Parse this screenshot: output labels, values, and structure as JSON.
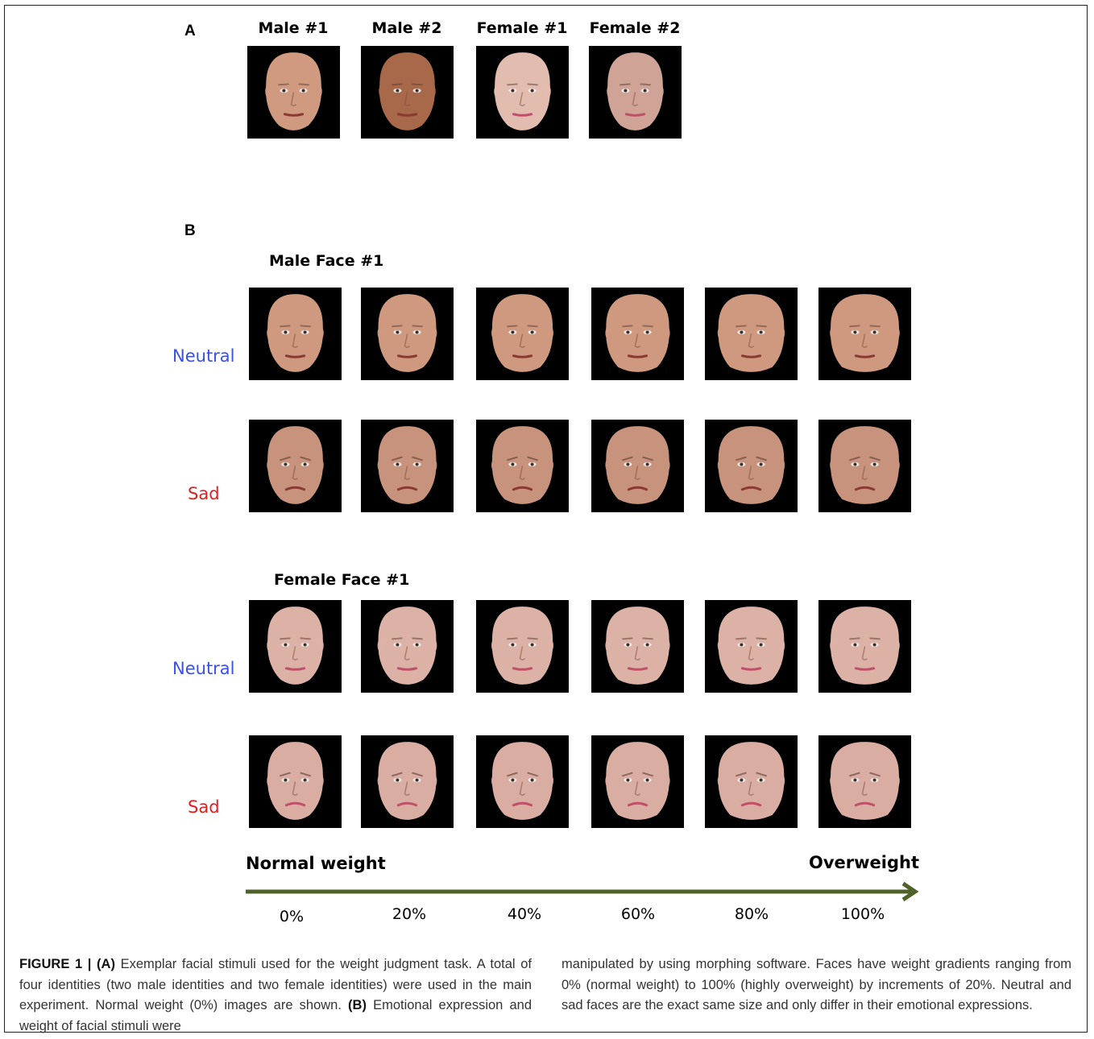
{
  "panel_a": {
    "letter": "A",
    "columns": [
      {
        "label": "Male #1",
        "skin": "#d09a80",
        "shade": "#a06a52",
        "sex": "male"
      },
      {
        "label": "Male #2",
        "skin": "#a8684a",
        "shade": "#6e3a24",
        "sex": "male"
      },
      {
        "label": "Female #1",
        "skin": "#e3bcb0",
        "shade": "#b48c84",
        "sex": "female"
      },
      {
        "label": "Female #2",
        "skin": "#cfa496",
        "shade": "#9c7468",
        "sex": "female"
      }
    ]
  },
  "panel_b": {
    "letter": "B",
    "sections": [
      {
        "title": "Male Face #1",
        "sex": "male",
        "rows": [
          {
            "label": "Neutral",
            "color": "#3a50e6",
            "skin": "#cf9980"
          },
          {
            "label": "Sad",
            "color": "#e02020",
            "skin": "#c8937c"
          }
        ]
      },
      {
        "title": "Female Face #1",
        "sex": "female",
        "rows": [
          {
            "label": "Neutral",
            "color": "#3a50e6",
            "skin": "#dcb2a6"
          },
          {
            "label": "Sad",
            "color": "#e02020",
            "skin": "#d9ada2"
          }
        ]
      }
    ],
    "axis": {
      "start_label": "Normal weight",
      "end_label": "Overweight",
      "arrow_color": "#4f6228",
      "ticks": [
        "0%",
        "20%",
        "40%",
        "60%",
        "80%",
        "100%"
      ],
      "weight_levels": [
        0,
        20,
        40,
        60,
        80,
        100
      ]
    }
  },
  "caption": {
    "figure_label": "FIGURE 1 | ",
    "part_a_label": "(A)",
    "part_a_text": " Exemplar facial  stimuli used for the weight judgment task. A total of four identities (two male identities and two female identities) were used in the main experiment. Normal weight (0%) images are shown. ",
    "part_b_label": "(B)",
    "part_b_text_left": " Emotional expression and weight of facial stimuli were",
    "right_text": "manipulated by using morphing software. Faces have weight gradients ranging from 0% (normal weight) to 100% (highly overweight) by increments of 20%. Neutral and sad faces are the exact same size and only differ in their emotional expressions."
  }
}
